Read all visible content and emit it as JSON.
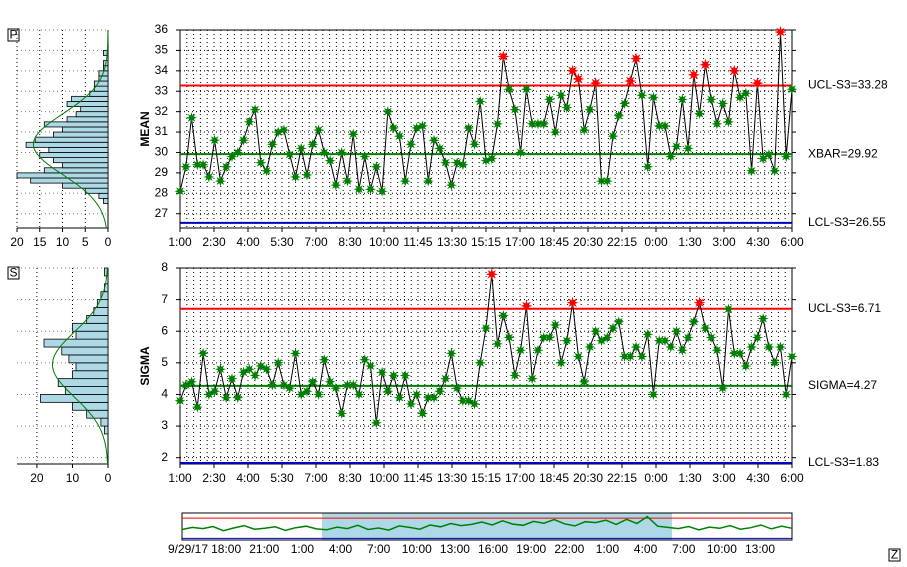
{
  "chart_data": [
    {
      "type": "line",
      "y_label": "MEAN",
      "button": "P",
      "x_labels": [
        "1:00",
        "2:30",
        "4:00",
        "5:30",
        "7:00",
        "8:30",
        "10:00",
        "11:45",
        "13:30",
        "15:15",
        "17:00",
        "18:45",
        "20:30",
        "22:15",
        "0:00",
        "1:30",
        "3:00",
        "4:30",
        "6:00"
      ],
      "values": [
        28.1,
        29.3,
        31.7,
        29.4,
        29.4,
        28.8,
        30.6,
        28.6,
        29.3,
        29.8,
        30.0,
        30.6,
        31.5,
        32.1,
        29.5,
        29.1,
        30.4,
        31.0,
        31.1,
        29.9,
        28.8,
        30.2,
        28.9,
        30.4,
        31.1,
        30.0,
        29.6,
        28.4,
        30.0,
        28.6,
        30.9,
        28.2,
        29.8,
        28.2,
        29.3,
        28.1,
        32.0,
        31.2,
        30.8,
        28.6,
        30.4,
        31.2,
        31.3,
        28.6,
        30.6,
        30.2,
        29.5,
        28.4,
        29.5,
        29.4,
        31.2,
        30.4,
        32.5,
        29.6,
        29.7,
        31.4,
        34.7,
        33.1,
        32.1,
        30.0,
        33.1,
        31.4,
        31.4,
        31.4,
        32.6,
        31.0,
        32.8,
        32.2,
        34.0,
        33.6,
        31.1,
        32.1,
        33.4,
        28.6,
        28.6,
        30.8,
        31.8,
        32.4,
        33.5,
        34.6,
        32.8,
        29.3,
        32.7,
        31.3,
        31.3,
        29.8,
        30.3,
        32.6,
        30.2,
        33.8,
        31.9,
        34.3,
        32.6,
        31.4,
        32.4,
        31.5,
        34.0,
        32.7,
        32.9,
        29.1,
        33.4,
        29.7,
        29.9,
        29.1,
        35.9,
        29.8,
        33.1
      ],
      "color": "#008000",
      "alarm_color": "#ff0000",
      "ylim": [
        26.3,
        36
      ],
      "yticks": [
        27,
        28,
        29,
        30,
        31,
        32,
        33,
        34,
        35,
        36
      ],
      "control_lines": [
        {
          "value": 33.28,
          "label": "UCL-S3=33.28",
          "color": "#ff0000",
          "alarm": true
        },
        {
          "value": 29.92,
          "label": "XBAR=29.92",
          "color": "#008000"
        },
        {
          "value": 26.55,
          "label": "LCL-S3=26.55",
          "color": "#0000c0"
        }
      ],
      "histogram": {
        "bins": [
          27.5,
          27.75,
          28.0,
          28.25,
          28.5,
          28.75,
          29.0,
          29.25,
          29.5,
          29.75,
          30.0,
          30.25,
          30.5,
          30.75,
          31.0,
          31.25,
          31.5,
          31.75,
          32.0,
          32.25,
          32.5,
          32.75,
          33.0,
          33.25,
          33.5,
          33.75,
          34.0,
          34.25,
          34.5,
          34.75,
          35.0
        ],
        "counts": [
          1,
          2,
          5,
          10,
          17,
          20,
          14,
          10,
          12,
          15,
          13,
          18,
          16,
          12,
          10,
          14,
          9,
          7,
          6,
          9,
          8,
          4,
          3,
          3,
          2,
          2,
          1,
          1,
          0,
          1
        ],
        "xlim": [
          0,
          20
        ],
        "xticks": [
          20,
          15,
          10,
          5,
          0
        ],
        "color": "#add8e6"
      }
    },
    {
      "type": "line",
      "y_label": "SIGMA",
      "button": "S",
      "x_labels": [
        "1:00",
        "2:30",
        "4:00",
        "5:30",
        "7:00",
        "8:30",
        "10:00",
        "11:45",
        "13:30",
        "15:15",
        "17:00",
        "18:45",
        "20:30",
        "22:15",
        "0:00",
        "1:30",
        "3:00",
        "4:30",
        "6:00"
      ],
      "values": [
        3.8,
        4.3,
        4.4,
        3.6,
        5.3,
        4.0,
        4.1,
        4.8,
        3.9,
        4.5,
        3.9,
        4.7,
        4.8,
        4.6,
        4.9,
        4.8,
        4.3,
        5.0,
        4.3,
        4.2,
        5.3,
        4.0,
        4.1,
        4.4,
        4.0,
        5.1,
        4.4,
        4.2,
        3.4,
        4.3,
        4.3,
        4.0,
        5.1,
        4.9,
        3.1,
        4.7,
        4.1,
        4.6,
        3.9,
        4.6,
        3.7,
        4.0,
        3.4,
        3.9,
        3.9,
        4.1,
        4.5,
        5.3,
        4.2,
        3.8,
        3.8,
        3.7,
        5.0,
        6.1,
        7.8,
        5.6,
        6.5,
        5.8,
        4.6,
        5.4,
        6.8,
        4.5,
        5.4,
        5.8,
        5.8,
        6.2,
        5.0,
        5.7,
        6.9,
        5.2,
        4.4,
        5.5,
        6.0,
        5.7,
        5.8,
        6.1,
        6.3,
        5.2,
        5.2,
        5.5,
        5.2,
        5.9,
        4.0,
        5.7,
        5.7,
        5.5,
        6.0,
        5.4,
        5.8,
        6.3,
        6.9,
        6.1,
        5.8,
        5.4,
        4.2,
        6.7,
        5.3,
        5.3,
        4.9,
        5.5,
        5.8,
        6.4,
        5.5,
        5.0,
        5.5,
        4.0,
        5.2
      ],
      "color": "#008000",
      "alarm_color": "#ff0000",
      "ylim": [
        1.8,
        8
      ],
      "yticks": [
        2,
        3,
        4,
        5,
        6,
        7,
        8
      ],
      "control_lines": [
        {
          "value": 6.71,
          "label": "UCL-S3=6.71",
          "color": "#ff0000",
          "alarm": true
        },
        {
          "value": 4.27,
          "label": "SIGMA=4.27",
          "color": "#008000"
        },
        {
          "value": 1.83,
          "label": "LCL-S3=1.83",
          "color": "#0000c0"
        }
      ],
      "histogram": {
        "bins": [
          2.75,
          3.0,
          3.25,
          3.5,
          3.75,
          4.0,
          4.25,
          4.5,
          4.75,
          5.0,
          5.25,
          5.5,
          5.75,
          6.0,
          6.25,
          6.5,
          6.75,
          7.0,
          7.25,
          7.5,
          7.75,
          8.0
        ],
        "counts": [
          1,
          2,
          6,
          10,
          19,
          12,
          14,
          10,
          9,
          11,
          13,
          18,
          9,
          10,
          6,
          4,
          3,
          2,
          1,
          0,
          1
        ],
        "xlim": [
          0,
          25.6
        ],
        "xticks": [
          20,
          10,
          0
        ],
        "color": "#add8e6"
      }
    }
  ],
  "overview": {
    "labels": [
      "9/29/17",
      "18:00",
      "21:00",
      "1:00",
      "4:00",
      "7:00",
      "10:00",
      "13:00",
      "16:00",
      "19:00",
      "22:00",
      "1:00",
      "4:00",
      "7:00",
      "10:00",
      "13:00"
    ],
    "values": [
      29.5,
      30.2,
      29.8,
      30.5,
      29.1,
      30.0,
      30.8,
      29.6,
      29.9,
      30.4,
      29.2,
      30.1,
      30.6,
      29.7,
      29.4,
      30.3,
      29.8,
      30.9,
      29.5,
      30.0,
      29.3,
      30.7,
      30.2,
      29.6,
      31.0,
      30.4,
      31.5,
      30.8,
      31.2,
      32.0,
      31.0,
      32.4,
      31.3,
      30.9,
      32.2,
      31.6,
      32.8,
      31.4,
      30.7,
      32.1,
      31.8,
      32.6,
      31.2,
      32.9,
      31.5,
      33.8,
      30.6,
      30.2,
      29.8,
      30.5,
      29.4,
      30.3,
      29.9,
      30.8,
      29.6,
      30.1,
      31.0,
      29.7,
      30.6,
      29.9
    ],
    "ylim": [
      26,
      35
    ],
    "color": "#008000"
  },
  "corner_button": "Z"
}
